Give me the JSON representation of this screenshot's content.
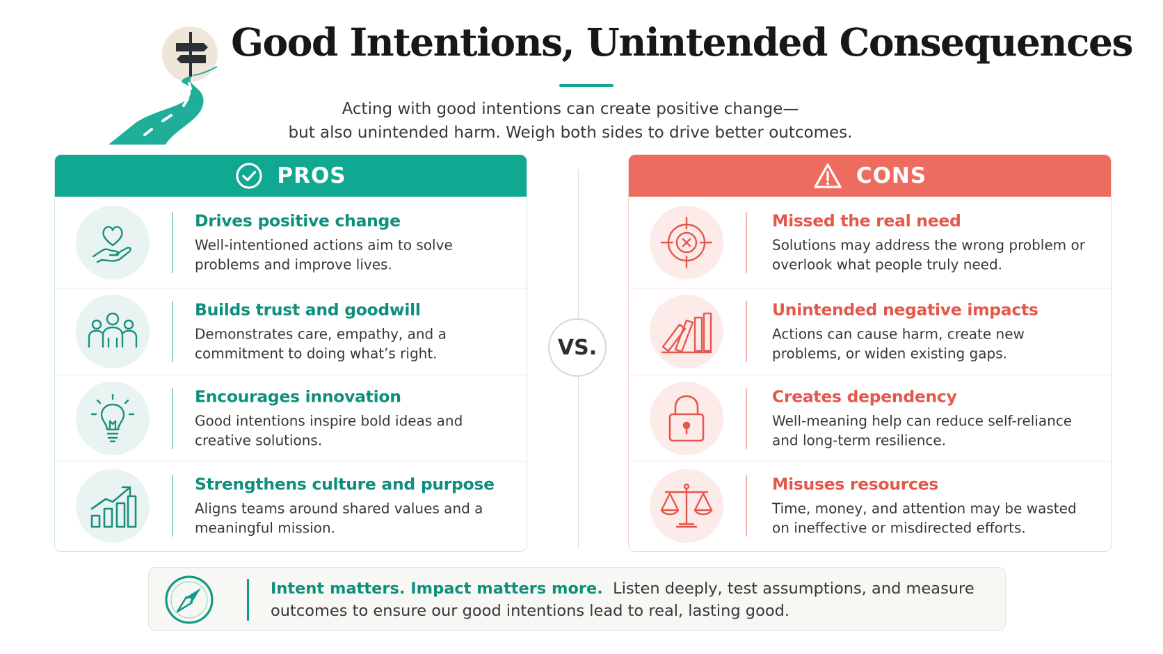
{
  "title": "Good Intentions, Unintended Consequences",
  "subtitle_lines": [
    "Acting with good intentions can create positive change—",
    "but also unintended harm. Weigh both sides to drive better outcomes."
  ],
  "colors": {
    "pros_accent": "#10a891",
    "cons_accent": "#ee6b60",
    "title": "#15181b"
  },
  "logo_icon": "signpost-road-icon",
  "pros": {
    "heading": "PROS",
    "heading_icon": "check-circle-icon",
    "items": [
      {
        "icon": "heart-hand-icon",
        "title": "Drives positive change",
        "description": "Well-intentioned actions aim to solve problems and improve lives."
      },
      {
        "icon": "people-group-icon",
        "title": "Builds trust and goodwill",
        "description": "Demonstrates care, empathy, and a commitment to doing what’s right."
      },
      {
        "icon": "lightbulb-icon",
        "title": "Encourages innovation",
        "description": "Good intentions inspire bold ideas and creative solutions."
      },
      {
        "icon": "growth-chart-icon",
        "title": "Strengthens culture and purpose",
        "description": "Aligns teams around shared values and a meaningful mission."
      }
    ]
  },
  "vs_label": "VS.",
  "cons": {
    "heading": "CONS",
    "heading_icon": "warning-triangle-icon",
    "items": [
      {
        "icon": "target-miss-icon",
        "title": "Missed the real need",
        "description": "Solutions may address the wrong problem or overlook what people truly need."
      },
      {
        "icon": "falling-books-icon",
        "title": "Unintended negative impacts",
        "description": "Actions can cause harm, create new problems, or widen existing gaps."
      },
      {
        "icon": "padlock-icon",
        "title": "Creates dependency",
        "description": "Well-meaning help can reduce self-reliance and long-term resilience."
      },
      {
        "icon": "balance-scale-icon",
        "title": "Misuses resources",
        "description": "Time, money, and attention may be wasted on ineffective or misdirected efforts."
      }
    ]
  },
  "footer": {
    "icon": "compass-icon",
    "emphasis": "Intent matters. Impact matters more.",
    "text": "Listen deeply, test assumptions, and measure outcomes to ensure our good intentions lead to real, lasting good."
  }
}
